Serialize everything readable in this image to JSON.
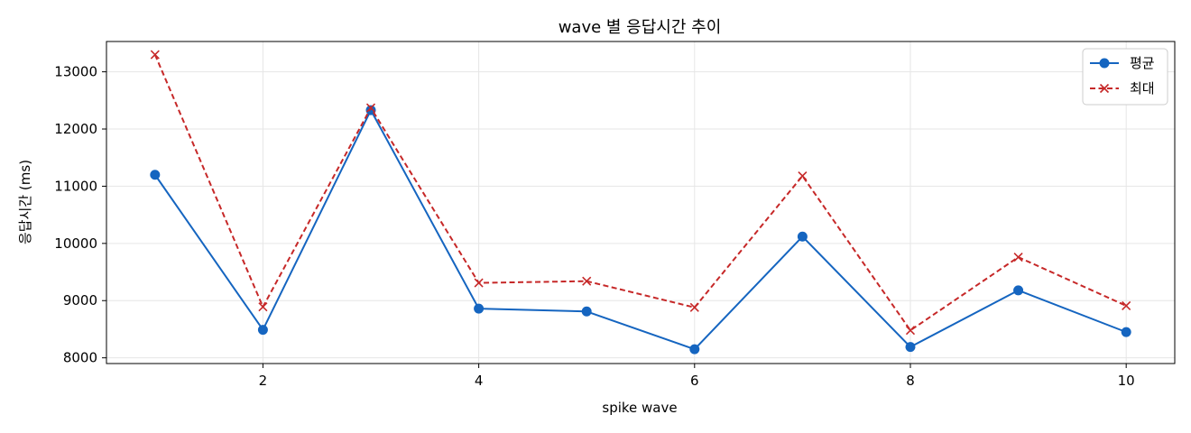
{
  "chart_data": {
    "type": "line",
    "title": "wave 별 응답시간 추이",
    "xlabel": "spike wave",
    "ylabel": "응답시간 (ms)",
    "x": [
      1,
      2,
      3,
      4,
      5,
      6,
      7,
      8,
      9,
      10
    ],
    "xlim": [
      0.55,
      10.45
    ],
    "ylim": [
      7900,
      13530
    ],
    "xticks": [
      2,
      4,
      6,
      8,
      10
    ],
    "yticks": [
      8000,
      9000,
      10000,
      11000,
      12000,
      13000
    ],
    "grid": true,
    "legend_position": "top-right",
    "series": [
      {
        "name": "평균",
        "values": [
          11200,
          8490,
          12330,
          8860,
          8810,
          8150,
          10120,
          8190,
          9180,
          8450
        ],
        "color": "#1565c0",
        "line_style": "solid",
        "marker": "circle"
      },
      {
        "name": "최대",
        "values": [
          13300,
          8890,
          12370,
          9310,
          9340,
          8880,
          11180,
          8480,
          9760,
          8910
        ],
        "color": "#c62828",
        "line_style": "dashed",
        "marker": "x"
      }
    ]
  }
}
